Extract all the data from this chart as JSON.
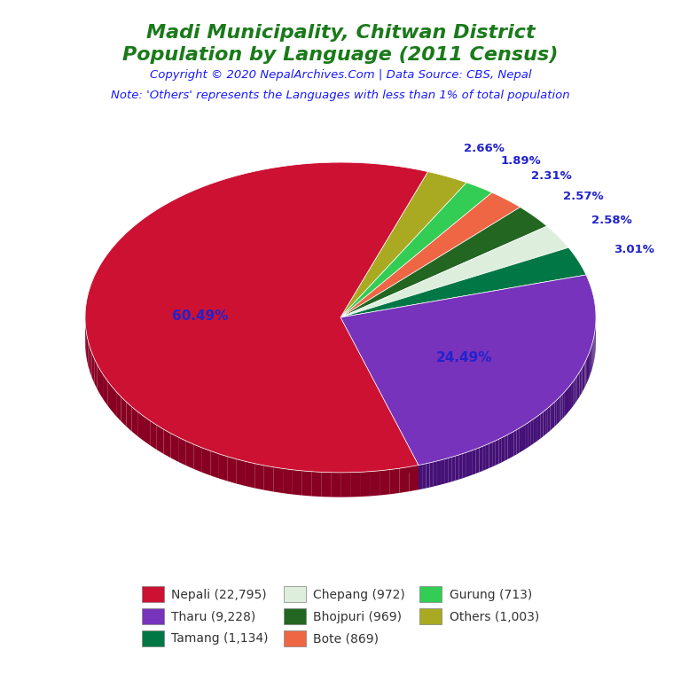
{
  "title_line1": "Madi Municipality, Chitwan District",
  "title_line2": "Population by Language (2011 Census)",
  "title_color": "#1a7a1a",
  "copyright_text": "Copyright © 2020 NepalArchives.Com | Data Source: CBS, Nepal",
  "copyright_color": "#1a1aff",
  "note_text": "Note: 'Others' represents the Languages with less than 1% of total population",
  "note_color": "#1a1aff",
  "slices": [
    {
      "label": "Nepali (22,795)",
      "value": 22795,
      "pct": "60.49%",
      "color": "#cc1133",
      "dark": "#880022"
    },
    {
      "label": "Tharu (9,228)",
      "value": 9228,
      "pct": "24.49%",
      "color": "#7733bb",
      "dark": "#441177"
    },
    {
      "label": "Tamang (1,134)",
      "value": 1134,
      "pct": "3.01%",
      "color": "#007744",
      "dark": "#004422"
    },
    {
      "label": "Chepang (972)",
      "value": 972,
      "pct": "2.58%",
      "color": "#ddeedd",
      "dark": "#aabbaa"
    },
    {
      "label": "Bhojpuri (969)",
      "value": 969,
      "pct": "2.57%",
      "color": "#226622",
      "dark": "#113311"
    },
    {
      "label": "Bote (869)",
      "value": 869,
      "pct": "2.31%",
      "color": "#ee6644",
      "dark": "#aa3322"
    },
    {
      "label": "Gurung (713)",
      "value": 713,
      "pct": "1.89%",
      "color": "#33cc55",
      "dark": "#228833"
    },
    {
      "label": "Others (1,003)",
      "value": 1003,
      "pct": "2.66%",
      "color": "#aaaa22",
      "dark": "#666611"
    }
  ],
  "legend_order": [
    0,
    1,
    2,
    3,
    4,
    5,
    6,
    7
  ],
  "pct_label_color": "#2222cc",
  "background_color": "#ffffff"
}
